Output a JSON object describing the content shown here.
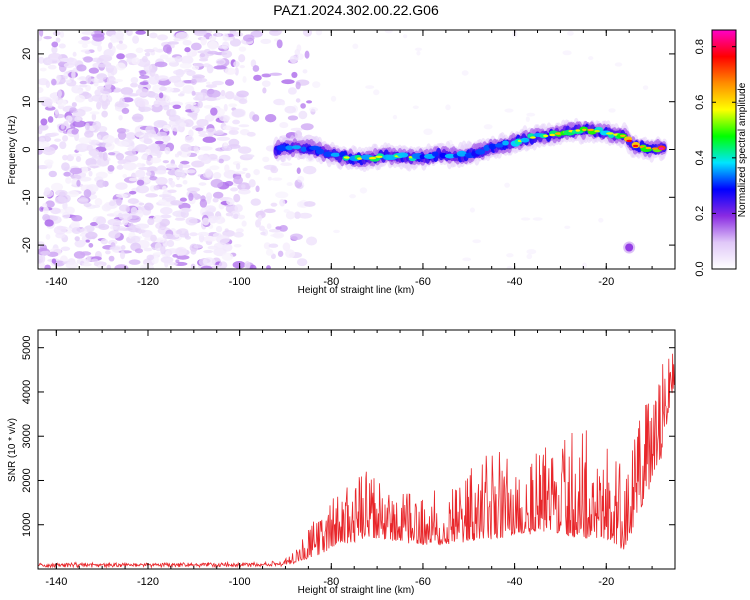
{
  "chart_data": [
    {
      "type": "heatmap",
      "title": "PAZ1.2024.302.00.22.G06",
      "xlabel": "Height of straight line (km)",
      "ylabel": "Frequency (Hz)",
      "xlim": [
        -144,
        -5
      ],
      "ylim": [
        -25,
        25
      ],
      "xticks": [
        -140,
        -120,
        -100,
        -80,
        -60,
        -40,
        -20
      ],
      "yticks": [
        -20,
        -10,
        0,
        10,
        20
      ],
      "colorbar": {
        "label": "Normalized spectral amplitude",
        "range": [
          0,
          0.86
        ],
        "ticks": [
          0.0,
          0.2,
          0.4,
          0.6,
          0.8
        ],
        "colors": [
          "#ffffff",
          "#e0c8f8",
          "#8a2be2",
          "#0000ff",
          "#00e5ff",
          "#00ff00",
          "#ffff00",
          "#ff8c00",
          "#ff0000",
          "#ff00c8"
        ]
      },
      "noise_region_x": [
        -144,
        -90
      ],
      "ridge": [
        {
          "x": -92,
          "f": 0.0,
          "amp": 0.3
        },
        {
          "x": -88,
          "f": 0.5,
          "amp": 0.36
        },
        {
          "x": -84,
          "f": 0.2,
          "amp": 0.33
        },
        {
          "x": -80,
          "f": -1.0,
          "amp": 0.38
        },
        {
          "x": -76,
          "f": -1.8,
          "amp": 0.42
        },
        {
          "x": -72,
          "f": -2.0,
          "amp": 0.45
        },
        {
          "x": -68,
          "f": -1.2,
          "amp": 0.38
        },
        {
          "x": -64,
          "f": -1.5,
          "amp": 0.42
        },
        {
          "x": -60,
          "f": -1.8,
          "amp": 0.38
        },
        {
          "x": -56,
          "f": -1.0,
          "amp": 0.35
        },
        {
          "x": -52,
          "f": -1.4,
          "amp": 0.4
        },
        {
          "x": -48,
          "f": -0.5,
          "amp": 0.36
        },
        {
          "x": -44,
          "f": 0.5,
          "amp": 0.34
        },
        {
          "x": -40,
          "f": 1.5,
          "amp": 0.4
        },
        {
          "x": -36,
          "f": 2.5,
          "amp": 0.42
        },
        {
          "x": -32,
          "f": 3.0,
          "amp": 0.46
        },
        {
          "x": -28,
          "f": 3.8,
          "amp": 0.55
        },
        {
          "x": -24,
          "f": 4.2,
          "amp": 0.6
        },
        {
          "x": -20,
          "f": 3.5,
          "amp": 0.5
        },
        {
          "x": -16,
          "f": 2.8,
          "amp": 0.52
        },
        {
          "x": -14,
          "f": 0.8,
          "amp": 0.75
        },
        {
          "x": -10,
          "f": 0.2,
          "amp": 0.55
        },
        {
          "x": -7,
          "f": 0.2,
          "amp": 0.86
        }
      ]
    },
    {
      "type": "line",
      "xlabel": "Height of straight line (km)",
      "ylabel": "SNR (10 * v/v)",
      "xlim": [
        -144,
        -5
      ],
      "ylim": [
        0,
        5400
      ],
      "xticks": [
        -140,
        -120,
        -100,
        -80,
        -60,
        -40,
        -20
      ],
      "yticks": [
        1000,
        2000,
        3000,
        4000,
        5000
      ],
      "series": [
        {
          "color": "#e8262a",
          "envelope": {
            "x": [
              -144,
              -100,
              -90,
              -86,
              -82,
              -80,
              -76,
              -72,
              -68,
              -64,
              -60,
              -56,
              -52,
              -48,
              -44,
              -40,
              -36,
              -32,
              -28,
              -24,
              -20,
              -16,
              -13,
              -10,
              -8,
              -6,
              -5
            ],
            "base": [
              50,
              60,
              80,
              200,
              350,
              500,
              600,
              700,
              650,
              600,
              550,
              550,
              600,
              650,
              700,
              750,
              800,
              850,
              750,
              700,
              700,
              400,
              1200,
              2000,
              2500,
              3800,
              4200
            ],
            "peak": [
              180,
              180,
              250,
              800,
              1300,
              1600,
              2000,
              2300,
              1800,
              1700,
              1700,
              1900,
              2100,
              2400,
              2800,
              2600,
              2700,
              2900,
              3100,
              3300,
              2800,
              2300,
              3600,
              3900,
              4600,
              5100,
              5300
            ]
          }
        }
      ]
    }
  ]
}
